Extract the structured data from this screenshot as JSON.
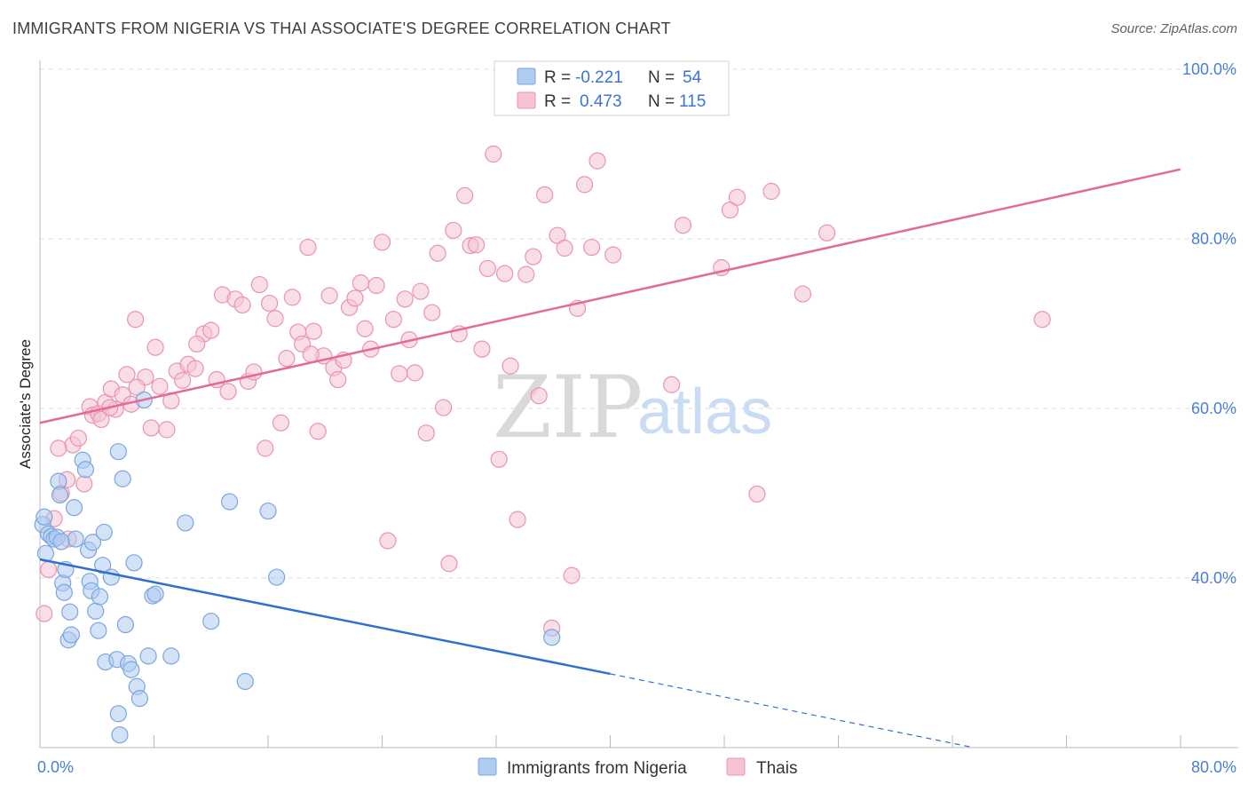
{
  "header": {
    "title": "IMMIGRANTS FROM NIGERIA VS THAI ASSOCIATE'S DEGREE CORRELATION CHART",
    "source": "Source: ZipAtlas.com"
  },
  "watermark": {
    "zip": "ZIP",
    "atlas": "atlas"
  },
  "colors": {
    "blue_fill": "#aecbf0",
    "blue_stroke": "#7aa6df",
    "blue_line": "#2f6fd0",
    "pink_fill": "#f6c3d3",
    "pink_stroke": "#e993b0",
    "pink_line": "#e46a95",
    "grid": "#dddddd",
    "tick_label": "#4a7fd4"
  },
  "chart_data": {
    "type": "scatter",
    "title": "IMMIGRANTS FROM NIGERIA VS THAI ASSOCIATE'S DEGREE CORRELATION CHART",
    "xlabel": "",
    "ylabel": "Associate's Degree",
    "xlim": [
      0,
      80
    ],
    "ylim": [
      20,
      100
    ],
    "x_ticks": [
      0,
      80
    ],
    "x_tick_labels": [
      "0.0%",
      "80.0%"
    ],
    "y_ticks": [
      40,
      60,
      80,
      100
    ],
    "y_tick_labels": [
      "40.0%",
      "60.0%",
      "80.0%",
      "100.0%"
    ],
    "grid": true,
    "legend_placement": "top-center",
    "stats": [
      {
        "series": "Immigrants from Nigeria",
        "r_label": "R =",
        "r_value": "-0.221",
        "n_label": "N =",
        "n_value": "54"
      },
      {
        "series": "Thais",
        "r_label": "R =",
        "r_value": "0.473",
        "n_label": "N =",
        "n_value": "115"
      }
    ],
    "series": [
      {
        "name": "Immigrants from Nigeria",
        "color": "blue",
        "trend": {
          "x0": 0,
          "y0": 42.2,
          "x1": 40,
          "y1": 28.7,
          "dash_x1": 65.5,
          "dash_y1": 20.0
        },
        "points": [
          [
            0.2,
            46.3
          ],
          [
            0.3,
            47.2
          ],
          [
            0.6,
            45.2
          ],
          [
            0.8,
            44.9
          ],
          [
            1.0,
            44.6
          ],
          [
            1.2,
            44.8
          ],
          [
            1.3,
            51.4
          ],
          [
            1.4,
            49.8
          ],
          [
            1.6,
            39.4
          ],
          [
            1.7,
            38.3
          ],
          [
            1.8,
            41.0
          ],
          [
            2.0,
            32.7
          ],
          [
            2.1,
            36.0
          ],
          [
            2.2,
            33.3
          ],
          [
            2.4,
            48.3
          ],
          [
            2.5,
            44.6
          ],
          [
            3.0,
            53.9
          ],
          [
            3.2,
            52.8
          ],
          [
            3.4,
            43.3
          ],
          [
            3.5,
            39.6
          ],
          [
            3.6,
            38.5
          ],
          [
            3.7,
            44.2
          ],
          [
            3.9,
            36.1
          ],
          [
            4.1,
            33.8
          ],
          [
            4.2,
            37.8
          ],
          [
            4.4,
            41.5
          ],
          [
            4.5,
            45.4
          ],
          [
            4.6,
            30.1
          ],
          [
            5.0,
            40.1
          ],
          [
            5.4,
            30.4
          ],
          [
            5.5,
            24.0
          ],
          [
            5.6,
            21.5
          ],
          [
            5.8,
            51.7
          ],
          [
            6.0,
            34.5
          ],
          [
            6.2,
            29.9
          ],
          [
            6.4,
            29.2
          ],
          [
            6.6,
            41.8
          ],
          [
            6.8,
            27.2
          ],
          [
            7.0,
            25.8
          ],
          [
            7.3,
            61.0
          ],
          [
            7.6,
            30.8
          ],
          [
            7.9,
            37.9
          ],
          [
            8.1,
            38.1
          ],
          [
            9.2,
            30.8
          ],
          [
            10.2,
            46.5
          ],
          [
            12.0,
            34.9
          ],
          [
            13.3,
            49.0
          ],
          [
            14.4,
            27.8
          ],
          [
            16.0,
            47.9
          ],
          [
            16.6,
            40.1
          ],
          [
            35.9,
            33.0
          ],
          [
            0.4,
            42.9
          ],
          [
            1.5,
            44.3
          ],
          [
            5.5,
            54.9
          ]
        ]
      },
      {
        "name": "Thais",
        "color": "pink",
        "trend": {
          "x0": 0,
          "y0": 58.3,
          "x1": 80,
          "y1": 88.2
        },
        "points": [
          [
            0.3,
            35.8
          ],
          [
            0.6,
            41.0
          ],
          [
            1.0,
            47.0
          ],
          [
            1.5,
            50.0
          ],
          [
            1.9,
            51.6
          ],
          [
            2.3,
            55.7
          ],
          [
            2.7,
            56.5
          ],
          [
            3.1,
            51.1
          ],
          [
            3.5,
            60.2
          ],
          [
            3.7,
            59.2
          ],
          [
            4.1,
            59.4
          ],
          [
            4.3,
            58.7
          ],
          [
            4.6,
            60.7
          ],
          [
            5.0,
            62.3
          ],
          [
            5.3,
            59.9
          ],
          [
            5.8,
            61.6
          ],
          [
            6.1,
            64.0
          ],
          [
            6.4,
            60.5
          ],
          [
            6.7,
            70.5
          ],
          [
            7.4,
            63.7
          ],
          [
            7.8,
            57.7
          ],
          [
            8.1,
            67.2
          ],
          [
            8.4,
            62.6
          ],
          [
            8.9,
            57.5
          ],
          [
            9.2,
            60.9
          ],
          [
            9.6,
            64.4
          ],
          [
            10.0,
            63.3
          ],
          [
            10.4,
            65.2
          ],
          [
            10.9,
            64.7
          ],
          [
            11.5,
            68.8
          ],
          [
            12.0,
            69.2
          ],
          [
            12.4,
            63.4
          ],
          [
            12.8,
            73.4
          ],
          [
            13.2,
            62.0
          ],
          [
            13.7,
            72.9
          ],
          [
            14.2,
            72.2
          ],
          [
            14.6,
            63.2
          ],
          [
            15.0,
            64.3
          ],
          [
            15.4,
            74.6
          ],
          [
            15.8,
            55.3
          ],
          [
            16.1,
            72.4
          ],
          [
            16.5,
            70.6
          ],
          [
            16.9,
            58.3
          ],
          [
            17.3,
            65.9
          ],
          [
            17.7,
            73.1
          ],
          [
            18.1,
            69.0
          ],
          [
            18.4,
            67.6
          ],
          [
            18.8,
            79.0
          ],
          [
            19.2,
            69.1
          ],
          [
            19.5,
            57.3
          ],
          [
            19.9,
            66.2
          ],
          [
            20.3,
            73.3
          ],
          [
            20.6,
            64.8
          ],
          [
            20.9,
            63.4
          ],
          [
            21.3,
            65.7
          ],
          [
            21.7,
            71.9
          ],
          [
            22.1,
            73.0
          ],
          [
            22.5,
            74.8
          ],
          [
            22.8,
            69.4
          ],
          [
            23.2,
            67.0
          ],
          [
            23.6,
            74.5
          ],
          [
            24.0,
            79.6
          ],
          [
            24.4,
            44.4
          ],
          [
            24.8,
            70.5
          ],
          [
            25.2,
            64.1
          ],
          [
            25.6,
            72.9
          ],
          [
            25.9,
            68.1
          ],
          [
            26.3,
            64.2
          ],
          [
            26.7,
            73.8
          ],
          [
            27.1,
            57.1
          ],
          [
            27.5,
            71.3
          ],
          [
            27.9,
            78.3
          ],
          [
            28.3,
            60.1
          ],
          [
            28.7,
            41.7
          ],
          [
            29.0,
            81.0
          ],
          [
            29.4,
            68.8
          ],
          [
            29.8,
            85.1
          ],
          [
            30.2,
            79.2
          ],
          [
            30.6,
            79.3
          ],
          [
            31.0,
            67.0
          ],
          [
            31.4,
            76.5
          ],
          [
            31.8,
            90.0
          ],
          [
            32.2,
            54.0
          ],
          [
            32.6,
            75.9
          ],
          [
            33.0,
            65.0
          ],
          [
            33.5,
            46.9
          ],
          [
            34.1,
            75.8
          ],
          [
            34.6,
            77.9
          ],
          [
            35.0,
            61.5
          ],
          [
            35.4,
            85.2
          ],
          [
            35.9,
            34.1
          ],
          [
            36.3,
            80.4
          ],
          [
            36.8,
            78.9
          ],
          [
            37.3,
            40.3
          ],
          [
            37.7,
            71.8
          ],
          [
            38.2,
            86.4
          ],
          [
            38.7,
            79.0
          ],
          [
            39.1,
            89.2
          ],
          [
            40.2,
            78.1
          ],
          [
            44.3,
            62.8
          ],
          [
            45.1,
            81.6
          ],
          [
            47.8,
            76.6
          ],
          [
            48.4,
            83.4
          ],
          [
            48.9,
            84.9
          ],
          [
            50.3,
            49.9
          ],
          [
            51.3,
            85.6
          ],
          [
            53.5,
            73.5
          ],
          [
            55.2,
            80.7
          ],
          [
            70.3,
            70.5
          ],
          [
            1.3,
            55.3
          ],
          [
            2.0,
            44.6
          ],
          [
            4.9,
            60.1
          ],
          [
            6.8,
            62.5
          ],
          [
            11.0,
            67.6
          ],
          [
            19.0,
            66.4
          ]
        ]
      }
    ]
  }
}
